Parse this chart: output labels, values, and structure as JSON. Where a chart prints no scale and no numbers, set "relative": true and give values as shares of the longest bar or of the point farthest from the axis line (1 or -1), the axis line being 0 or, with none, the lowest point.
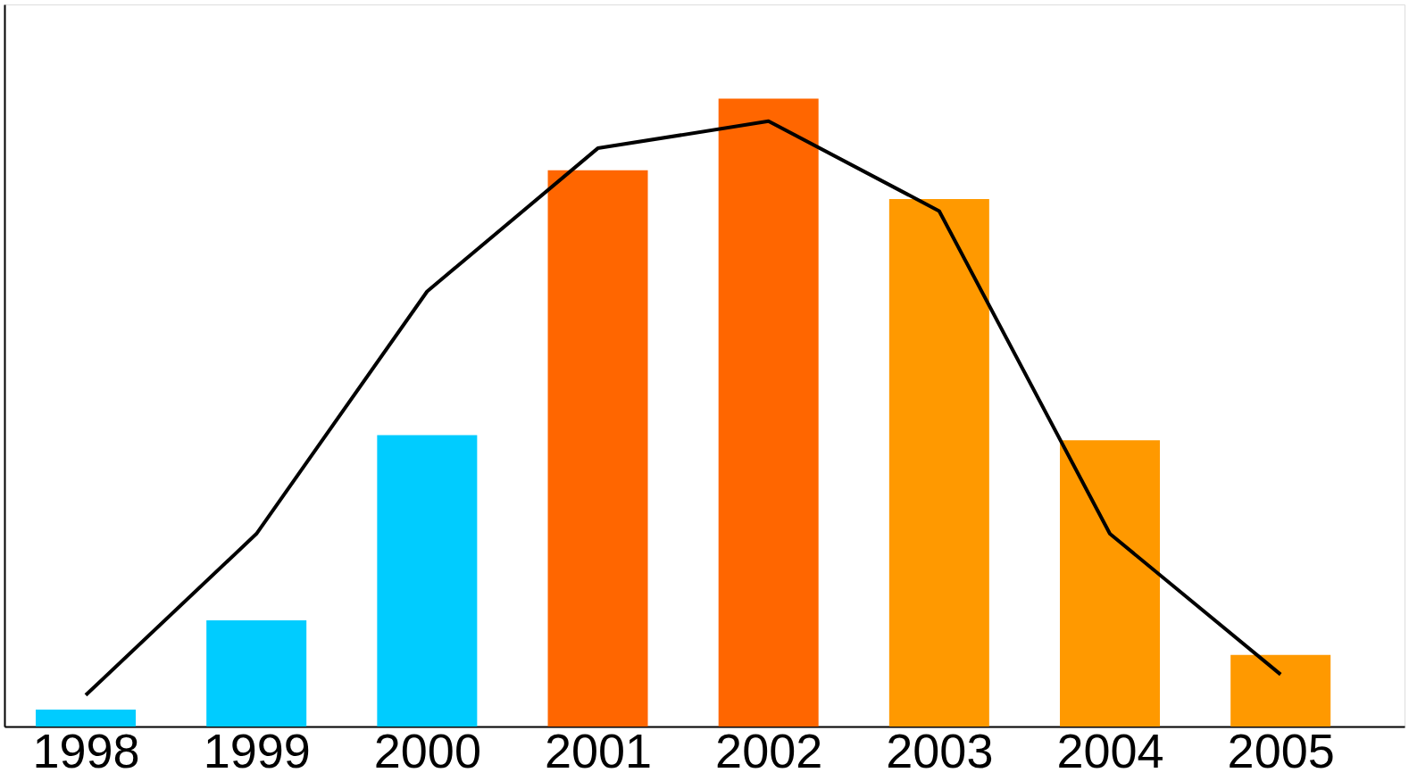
{
  "chart_data": {
    "type": "bar",
    "relative": true,
    "categories": [
      "1998",
      "1999",
      "2000",
      "2001",
      "2002",
      "2003",
      "2004",
      "2005"
    ],
    "series": [
      {
        "colors": [
          "#00ccff",
          "#00ccff",
          "#00ccff",
          "#ff6600",
          "#ff6600",
          "#ff9900",
          "#ff9900",
          "#ff9900"
        ],
        "values": [
          0.027,
          0.169,
          0.464,
          0.886,
          1,
          0.84,
          0.456,
          0.114
        ]
      },
      {
        "type": "line",
        "color": "#000000",
        "values": [
          0.05,
          0.307,
          0.693,
          0.921,
          0.964,
          0.821,
          0.307,
          0.083
        ]
      }
    ]
  }
}
